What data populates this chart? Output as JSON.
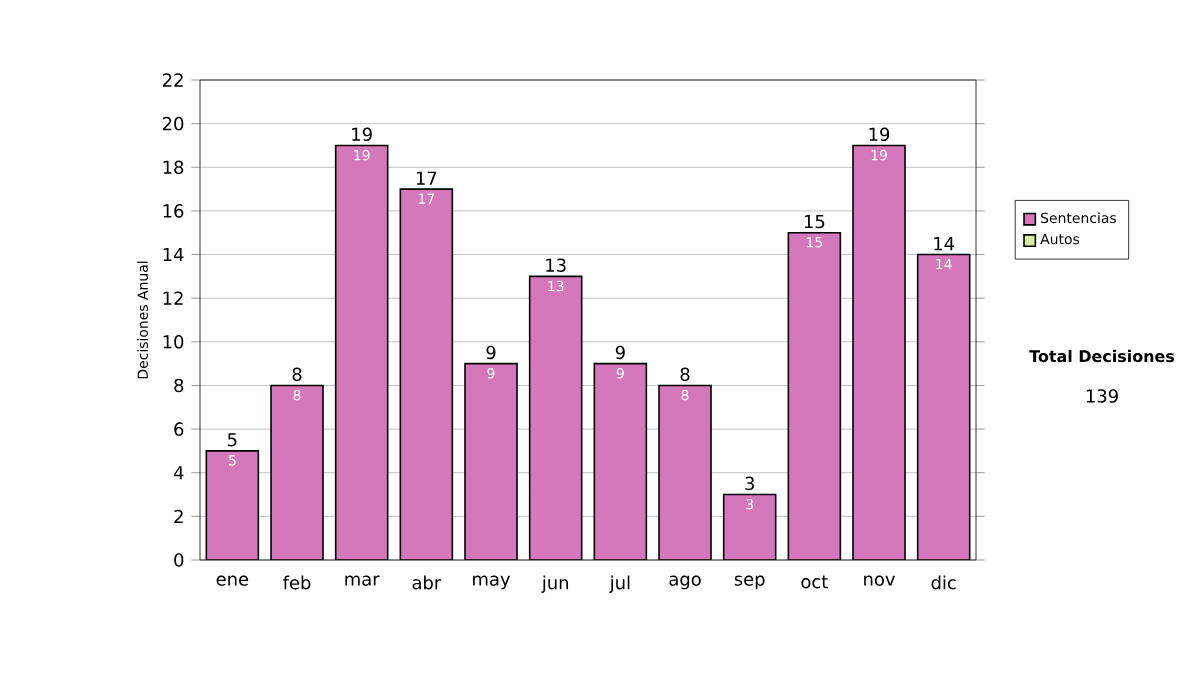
{
  "chart_data": {
    "type": "bar",
    "stacked": true,
    "ylabel": "Decisiones Anual",
    "categories": [
      "ene",
      "feb",
      "mar",
      "abr",
      "may",
      "jun",
      "jul",
      "ago",
      "sep",
      "oct",
      "nov",
      "dic"
    ],
    "series": [
      {
        "name": "Sentencias",
        "color": "#d577bb",
        "values": [
          5,
          8,
          19,
          17,
          9,
          13,
          9,
          8,
          3,
          15,
          19,
          14
        ],
        "value_labels": [
          "5",
          "8",
          "19",
          "17",
          "9",
          "13",
          "9",
          "8",
          "3",
          "15",
          "19",
          "14"
        ]
      },
      {
        "name": "Autos",
        "color": "#d9eca0",
        "values": [
          0,
          0,
          0,
          0,
          0,
          0,
          0,
          0,
          0,
          0,
          0,
          0
        ]
      }
    ],
    "totals": [
      "5",
      "8",
      "19",
      "17",
      "9",
      "13",
      "9",
      "8",
      "3",
      "15",
      "19",
      "14"
    ],
    "ylim": [
      0,
      22
    ],
    "yticks": [
      0,
      2,
      4,
      6,
      8,
      10,
      12,
      14,
      16,
      18,
      20,
      22
    ],
    "grid": "y",
    "legend": "right",
    "annotations": [
      "Total Decisiones",
      "139"
    ]
  }
}
